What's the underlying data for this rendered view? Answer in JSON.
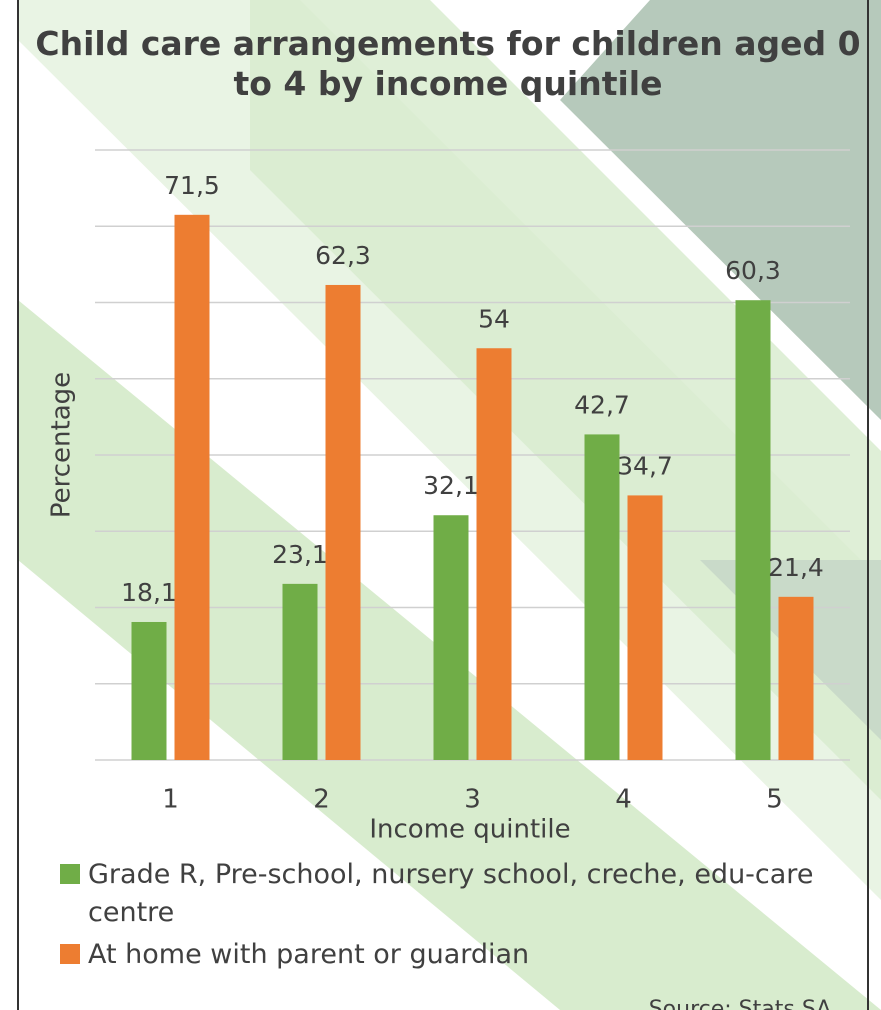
{
  "chart_data": {
    "type": "bar",
    "title": "Child care arrangements for children aged 0 to 4 by income quintile",
    "x_label": "Income quintile",
    "y_label": "Percentage",
    "categories": [
      "1",
      "2",
      "3",
      "4",
      "5"
    ],
    "series": [
      {
        "name": "Grade R, Pre-school, nursery school, creche, edu-care centre",
        "color": "#70ad47",
        "values": [
          18.1,
          23.1,
          32.1,
          42.7,
          60.3
        ],
        "value_labels": [
          "18,1",
          "23,1",
          "32,1",
          "42,7",
          "60,3"
        ]
      },
      {
        "name": "At home with parent or guardian",
        "color": "#ed7d31",
        "values": [
          71.5,
          62.3,
          54,
          34.7,
          21.4
        ],
        "value_labels": [
          "71,5",
          "62,3",
          "54",
          "34,7",
          "21,4"
        ]
      }
    ],
    "ylim": [
      0,
      80
    ],
    "yticks": [
      0,
      10,
      20,
      30,
      40,
      50,
      60,
      70,
      80
    ],
    "grid": true,
    "source": "Source: Stats SA"
  }
}
